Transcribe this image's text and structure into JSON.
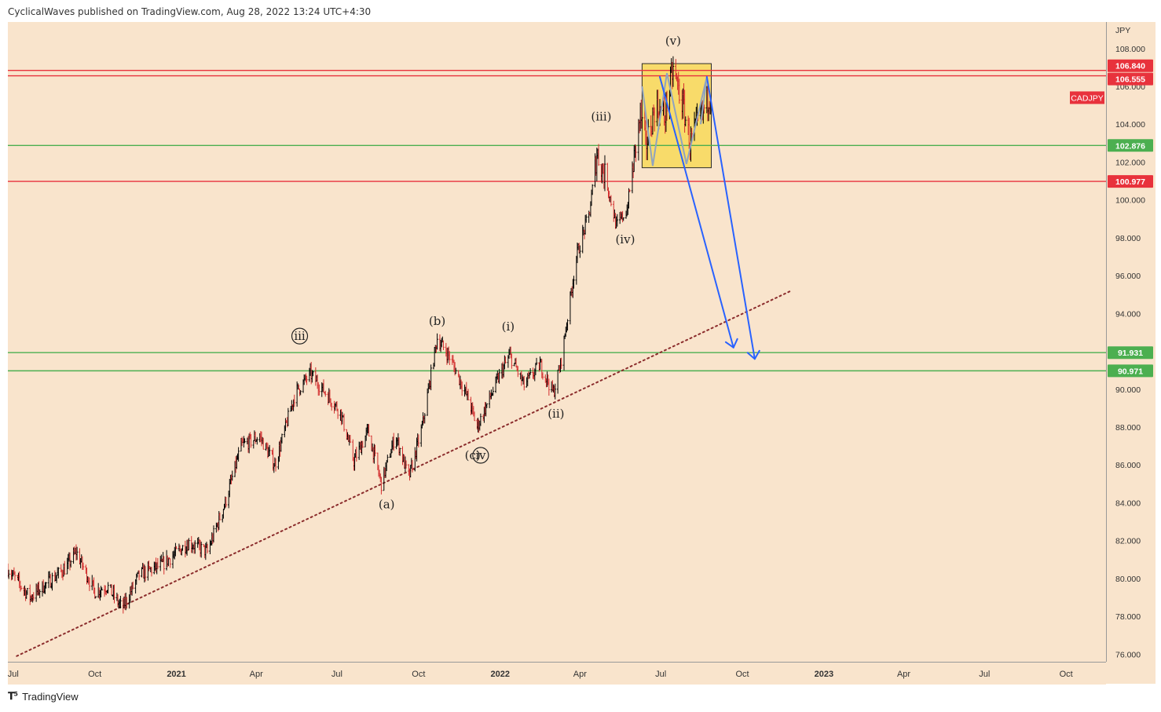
{
  "header": {
    "text": "CyclicalWaves published on TradingView.com, Aug 28, 2022 13:24 UTC+4:30"
  },
  "footer": {
    "brand": "TradingView",
    "logo_icon": "tradingview-logo-icon"
  },
  "colors": {
    "background": "#f9e4cc",
    "red_level": "#e8323c",
    "green_level": "#4caf50",
    "projection": "#2962ff",
    "trendline": "#8b2c2c",
    "box_fill": "#f7d84a",
    "bar_up": "#000000",
    "bar_down": "#d32f2f"
  },
  "chart_data": {
    "type": "ohlc-bar",
    "symbol": "CADJPY",
    "currency": "JPY",
    "ylim": [
      75.6,
      109.4
    ],
    "y_ticks": [
      "76.000",
      "78.000",
      "80.000",
      "82.000",
      "84.000",
      "86.000",
      "88.000",
      "90.000",
      "92.000",
      "94.000",
      "96.000",
      "98.000",
      "100.000",
      "102.000",
      "104.000",
      "106.000",
      "108.000"
    ],
    "x_ticks": [
      "Jul",
      "Oct",
      "2021",
      "Apr",
      "Jul",
      "Oct",
      "2022",
      "Apr",
      "Jul",
      "Oct",
      "2023",
      "Apr",
      "Jul",
      "Oct"
    ],
    "x_tick_bold": [
      false,
      false,
      true,
      false,
      false,
      false,
      true,
      false,
      false,
      false,
      true,
      false,
      false,
      false
    ],
    "x_range": [
      "2020-06-25",
      "2023-11-15"
    ],
    "x_tick_dates": [
      "2020-07-01",
      "2020-10-01",
      "2021-01-01",
      "2021-04-01",
      "2021-07-01",
      "2021-10-01",
      "2022-01-01",
      "2022-04-01",
      "2022-07-01",
      "2022-10-01",
      "2023-01-01",
      "2023-04-01",
      "2023-07-01",
      "2023-10-01"
    ],
    "levels": [
      {
        "value": 106.84,
        "label": "106.840",
        "color": "red"
      },
      {
        "value": 106.555,
        "label": "106.555",
        "color": "red"
      },
      {
        "value": 102.876,
        "label": "102.876",
        "color": "green"
      },
      {
        "value": 100.977,
        "label": "100.977",
        "color": "red"
      },
      {
        "value": 91.931,
        "label": "91.931",
        "color": "green"
      },
      {
        "value": 90.971,
        "label": "90.971",
        "color": "green"
      }
    ],
    "wave_labels": [
      {
        "text": "(v)",
        "date": "2022-07-15",
        "value": 108.2
      },
      {
        "text": "(iii)",
        "date": "2022-04-25",
        "value": 104.2
      },
      {
        "text": "(iv)",
        "date": "2022-05-22",
        "value": 97.7
      },
      {
        "text": "iii",
        "date": "2021-05-20",
        "value": 92.6,
        "circled": true
      },
      {
        "text": "(b)",
        "date": "2021-10-22",
        "value": 93.4
      },
      {
        "text": "(i)",
        "date": "2022-01-10",
        "value": 93.1
      },
      {
        "text": "(ii)",
        "date": "2022-03-05",
        "value": 88.5
      },
      {
        "text": "(c)",
        "date": "2021-12-01",
        "value": 86.3
      },
      {
        "text": "iv",
        "date": "2021-12-10",
        "value": 86.3,
        "circled": true
      },
      {
        "text": "(a)",
        "date": "2021-08-26",
        "value": 83.7
      }
    ],
    "symbol_label": "CADJPY",
    "symbol_label_value": 105.4,
    "highlight_box": {
      "x0": "2022-06-10",
      "x1": "2022-08-27",
      "y0": 101.7,
      "y1": 107.2
    },
    "zigzag": [
      {
        "date": "2022-06-10",
        "value": 106.0
      },
      {
        "date": "2022-06-22",
        "value": 101.8
      },
      {
        "date": "2022-07-08",
        "value": 106.7
      },
      {
        "date": "2022-07-30",
        "value": 101.9
      },
      {
        "date": "2022-08-22",
        "value": 106.5
      },
      {
        "date": "2022-08-15",
        "value": 104.0
      }
    ],
    "projections": [
      {
        "from": {
          "date": "2022-06-30",
          "value": 106.5
        },
        "to": {
          "date": "2022-09-21",
          "value": 92.2
        }
      },
      {
        "from": {
          "date": "2022-08-22",
          "value": 106.5
        },
        "to": {
          "date": "2022-10-15",
          "value": 91.6
        }
      }
    ],
    "trendline": {
      "from": {
        "date": "2020-07-05",
        "value": 75.9
      },
      "to": {
        "date": "2022-11-25",
        "value": 95.2
      }
    },
    "anchors": [
      {
        "date": "2020-06-25",
        "value": 80.5
      },
      {
        "date": "2020-07-20",
        "value": 79.0
      },
      {
        "date": "2020-08-30",
        "value": 80.6
      },
      {
        "date": "2020-09-10",
        "value": 81.4
      },
      {
        "date": "2020-10-01",
        "value": 79.3
      },
      {
        "date": "2020-10-15",
        "value": 79.6
      },
      {
        "date": "2020-11-01",
        "value": 78.4
      },
      {
        "date": "2020-11-20",
        "value": 80.2
      },
      {
        "date": "2020-12-15",
        "value": 80.7
      },
      {
        "date": "2021-01-15",
        "value": 81.9
      },
      {
        "date": "2021-02-05",
        "value": 81.4
      },
      {
        "date": "2021-02-25",
        "value": 84.0
      },
      {
        "date": "2021-03-15",
        "value": 87.0
      },
      {
        "date": "2021-04-05",
        "value": 87.5
      },
      {
        "date": "2021-04-22",
        "value": 86.0
      },
      {
        "date": "2021-05-15",
        "value": 89.8
      },
      {
        "date": "2021-06-01",
        "value": 90.8
      },
      {
        "date": "2021-06-15",
        "value": 90.0
      },
      {
        "date": "2021-07-05",
        "value": 88.8
      },
      {
        "date": "2021-07-20",
        "value": 86.2
      },
      {
        "date": "2021-08-05",
        "value": 87.8
      },
      {
        "date": "2021-08-20",
        "value": 85.0
      },
      {
        "date": "2021-09-05",
        "value": 87.6
      },
      {
        "date": "2021-09-20",
        "value": 85.3
      },
      {
        "date": "2021-10-05",
        "value": 88.0
      },
      {
        "date": "2021-10-22",
        "value": 92.7
      },
      {
        "date": "2021-11-05",
        "value": 91.7
      },
      {
        "date": "2021-11-26",
        "value": 89.5
      },
      {
        "date": "2021-12-06",
        "value": 88.0
      },
      {
        "date": "2021-12-20",
        "value": 89.5
      },
      {
        "date": "2022-01-01",
        "value": 90.8
      },
      {
        "date": "2022-01-12",
        "value": 91.8
      },
      {
        "date": "2022-01-28",
        "value": 90.2
      },
      {
        "date": "2022-02-15",
        "value": 91.3
      },
      {
        "date": "2022-03-02",
        "value": 89.8
      },
      {
        "date": "2022-03-10",
        "value": 91.3
      },
      {
        "date": "2022-03-28",
        "value": 97.0
      },
      {
        "date": "2022-04-12",
        "value": 99.4
      },
      {
        "date": "2022-04-20",
        "value": 102.5
      },
      {
        "date": "2022-05-01",
        "value": 101.0
      },
      {
        "date": "2022-05-12",
        "value": 98.6
      },
      {
        "date": "2022-05-24",
        "value": 99.5
      },
      {
        "date": "2022-06-08",
        "value": 104.5
      },
      {
        "date": "2022-06-14",
        "value": 102.8
      },
      {
        "date": "2022-06-25",
        "value": 105.0
      },
      {
        "date": "2022-07-05",
        "value": 104.3
      },
      {
        "date": "2022-07-15",
        "value": 106.9
      },
      {
        "date": "2022-07-27",
        "value": 104.8
      },
      {
        "date": "2022-08-03",
        "value": 103.0
      },
      {
        "date": "2022-08-12",
        "value": 104.0
      },
      {
        "date": "2022-08-22",
        "value": 105.2
      },
      {
        "date": "2022-08-27",
        "value": 105.8
      }
    ]
  }
}
